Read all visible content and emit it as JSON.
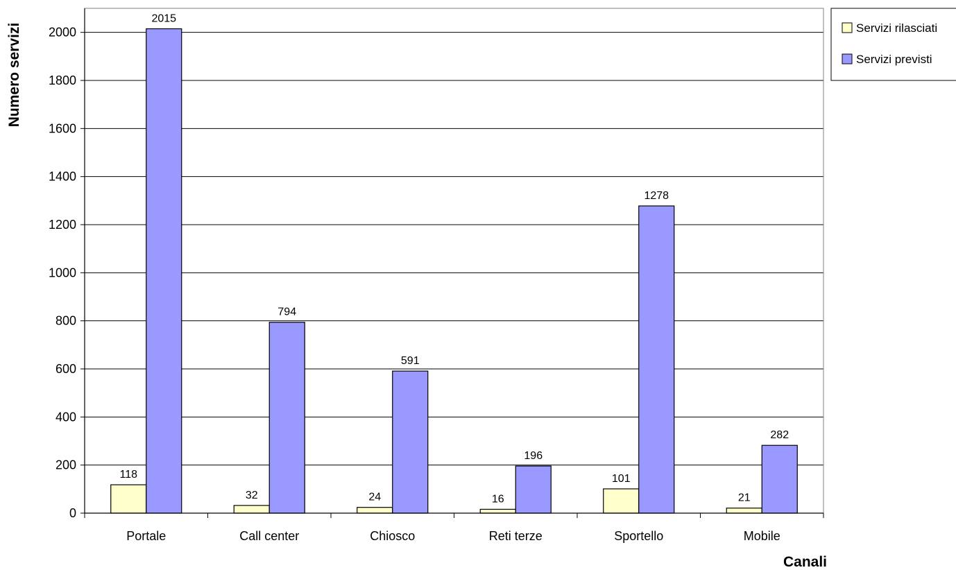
{
  "chart_data": {
    "type": "bar",
    "categories": [
      "Portale",
      "Call center",
      "Chiosco",
      "Reti terze",
      "Sportello",
      "Mobile"
    ],
    "series": [
      {
        "name": "Servizi rilasciati",
        "values": [
          118,
          32,
          24,
          16,
          101,
          21
        ],
        "color": "#FFFFCC"
      },
      {
        "name": "Servizi previsti",
        "values": [
          2015,
          794,
          591,
          196,
          1278,
          282
        ],
        "color": "#9999FF"
      }
    ],
    "xlabel": "Canali",
    "ylabel": "Numero servizi",
    "ylim": [
      0,
      2100
    ],
    "yticks": [
      0,
      200,
      400,
      600,
      800,
      1000,
      1200,
      1400,
      1600,
      1800,
      2000
    ],
    "grid": true,
    "legend_position": "top-right",
    "data_labels": true
  }
}
